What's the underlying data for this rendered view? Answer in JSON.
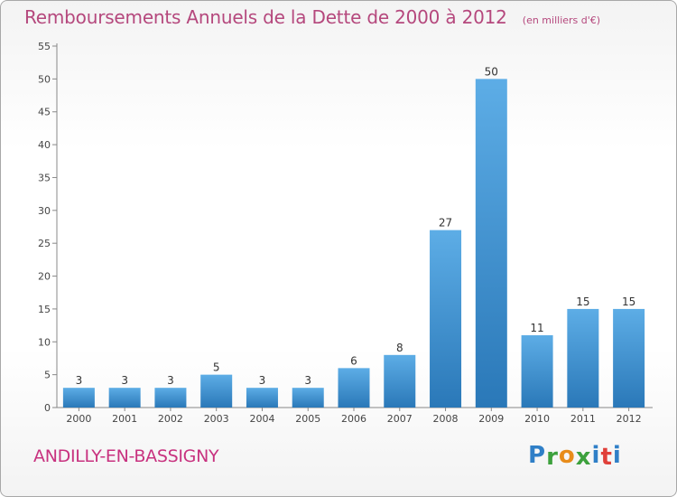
{
  "chart_data": {
    "type": "bar",
    "title": "Remboursements Annuels de la Dette de 2000 à 2012",
    "unit_note": "(en milliers d'€)",
    "categories": [
      "2000",
      "2001",
      "2002",
      "2003",
      "2004",
      "2005",
      "2006",
      "2007",
      "2008",
      "2009",
      "2010",
      "2011",
      "2012"
    ],
    "values": [
      3,
      3,
      3,
      5,
      3,
      3,
      6,
      8,
      27,
      50,
      11,
      15,
      15
    ],
    "xlabel": "",
    "ylabel": "",
    "ylim": [
      0,
      55
    ],
    "yticks": [
      0,
      5,
      10,
      15,
      20,
      25,
      30,
      35,
      40,
      45,
      50,
      55
    ],
    "grid": false,
    "bar_color_top": "#5dade6",
    "bar_color_bottom": "#2a78b8"
  },
  "footer": {
    "commune": "ANDILLY-EN-BASSIGNY",
    "logo_letters": [
      "P",
      "r",
      "o",
      "x",
      "i",
      "t",
      "i"
    ],
    "logo_colors": [
      "#2f7fc7",
      "#3da13d",
      "#e88c1a",
      "#3da13d",
      "#2f7fc7",
      "#e0403a",
      "#2f7fc7"
    ]
  }
}
